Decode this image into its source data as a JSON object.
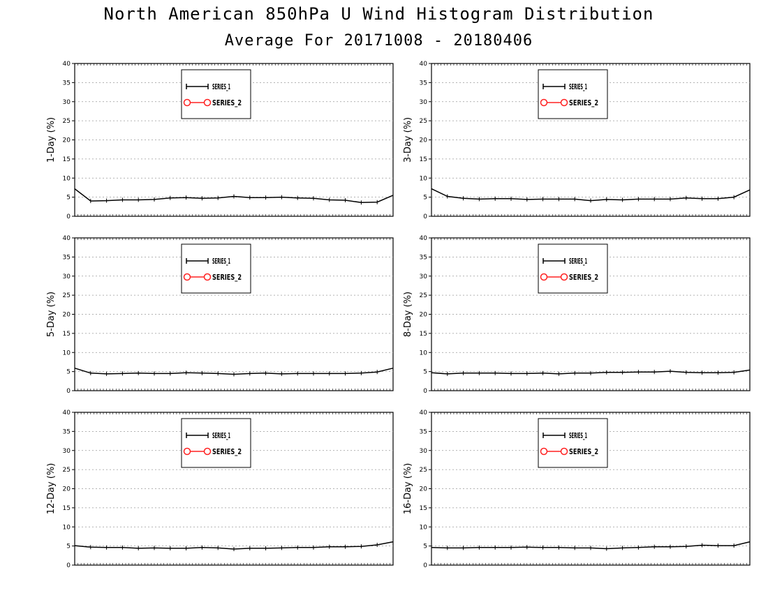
{
  "title": "North American 850hPa U Wind Histogram Distribution",
  "subtitle": "Average For 20171008 - 20180406",
  "legend": {
    "series1": "SERIES_1",
    "series2": "SERIES_2"
  },
  "colors": {
    "series1": "#000000",
    "series2": "#ff2020",
    "grid": "#999999"
  },
  "chart_data": [
    {
      "type": "line",
      "ylabel": "1-Day (%)",
      "ylim": [
        0,
        40
      ],
      "yticks": [
        0,
        5,
        10,
        15,
        20,
        25,
        30,
        35,
        40
      ],
      "grid": true,
      "legend_position": "top-left",
      "series": [
        {
          "values": [
            7.2,
            4.0,
            4.1,
            4.3,
            4.3,
            4.4,
            4.8,
            4.9,
            4.7,
            4.8,
            5.2,
            4.9,
            4.9,
            5.0,
            4.8,
            4.7,
            4.3,
            4.2,
            3.6,
            3.7,
            5.5
          ]
        }
      ]
    },
    {
      "type": "line",
      "ylabel": "3-Day (%)",
      "ylim": [
        0,
        40
      ],
      "yticks": [
        0,
        5,
        10,
        15,
        20,
        25,
        30,
        35,
        40
      ],
      "grid": true,
      "legend_position": "top-left",
      "series": [
        {
          "values": [
            7.2,
            5.2,
            4.7,
            4.5,
            4.6,
            4.6,
            4.4,
            4.5,
            4.5,
            4.5,
            4.1,
            4.4,
            4.3,
            4.5,
            4.5,
            4.5,
            4.8,
            4.6,
            4.6,
            5.0,
            6.9
          ]
        }
      ]
    },
    {
      "type": "line",
      "ylabel": "5-Day (%)",
      "ylim": [
        0,
        40
      ],
      "yticks": [
        0,
        5,
        10,
        15,
        20,
        25,
        30,
        35,
        40
      ],
      "grid": true,
      "legend_position": "top-left",
      "series": [
        {
          "values": [
            5.9,
            4.6,
            4.4,
            4.5,
            4.6,
            4.5,
            4.5,
            4.7,
            4.6,
            4.5,
            4.3,
            4.5,
            4.6,
            4.4,
            4.5,
            4.5,
            4.5,
            4.5,
            4.6,
            4.9,
            5.9
          ]
        }
      ]
    },
    {
      "type": "line",
      "ylabel": "8-Day (%)",
      "ylim": [
        0,
        40
      ],
      "yticks": [
        0,
        5,
        10,
        15,
        20,
        25,
        30,
        35,
        40
      ],
      "grid": true,
      "legend_position": "top-left",
      "series": [
        {
          "values": [
            4.7,
            4.4,
            4.6,
            4.6,
            4.6,
            4.5,
            4.5,
            4.6,
            4.4,
            4.6,
            4.6,
            4.8,
            4.8,
            4.9,
            4.9,
            5.1,
            4.8,
            4.7,
            4.7,
            4.8,
            5.4
          ]
        }
      ]
    },
    {
      "type": "line",
      "ylabel": "12-Day (%)",
      "ylim": [
        0,
        40
      ],
      "yticks": [
        0,
        5,
        10,
        15,
        20,
        25,
        30,
        35,
        40
      ],
      "grid": true,
      "legend_position": "top-left",
      "series": [
        {
          "values": [
            5.1,
            4.7,
            4.6,
            4.6,
            4.4,
            4.5,
            4.4,
            4.4,
            4.6,
            4.5,
            4.2,
            4.4,
            4.4,
            4.5,
            4.6,
            4.6,
            4.8,
            4.8,
            4.9,
            5.3,
            6.1
          ]
        }
      ]
    },
    {
      "type": "line",
      "ylabel": "16-Day (%)",
      "ylim": [
        0,
        40
      ],
      "yticks": [
        0,
        5,
        10,
        15,
        20,
        25,
        30,
        35,
        40
      ],
      "grid": true,
      "legend_position": "top-left",
      "series": [
        {
          "values": [
            4.6,
            4.5,
            4.5,
            4.6,
            4.6,
            4.6,
            4.7,
            4.6,
            4.6,
            4.5,
            4.5,
            4.3,
            4.5,
            4.6,
            4.8,
            4.8,
            4.9,
            5.2,
            5.1,
            5.1,
            6.1
          ]
        }
      ]
    }
  ]
}
